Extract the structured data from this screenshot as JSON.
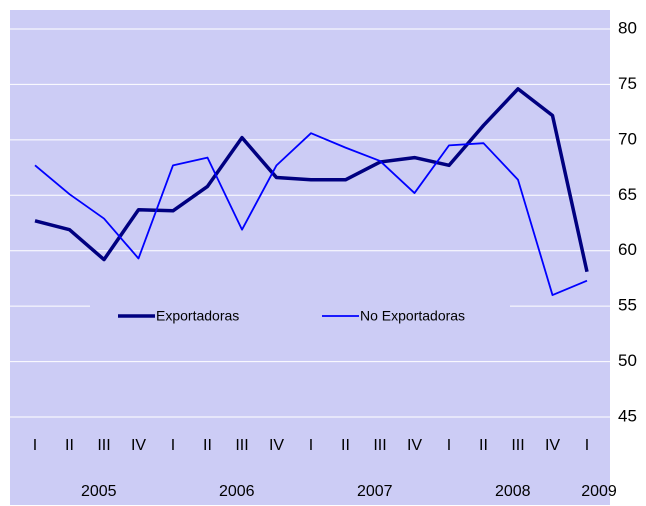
{
  "chart_data": {
    "type": "line",
    "categories": [
      "I",
      "II",
      "III",
      "IV",
      "I",
      "II",
      "III",
      "IV",
      "I",
      "II",
      "III",
      "IV",
      "I",
      "II",
      "III",
      "IV",
      "I"
    ],
    "x_groups": [
      "2005",
      "2006",
      "2007",
      "2008",
      "2009"
    ],
    "series": [
      {
        "name": "Exportadoras",
        "color": "#000080",
        "values": [
          62.7,
          61.9,
          59.2,
          63.7,
          63.6,
          65.8,
          70.2,
          66.6,
          66.4,
          66.4,
          68.0,
          68.4,
          67.7,
          71.3,
          74.6,
          72.2,
          58.1
        ]
      },
      {
        "name": "No Exportadoras",
        "color": "#0000ff",
        "values": [
          67.7,
          65.1,
          62.9,
          59.3,
          67.7,
          68.4,
          61.9,
          67.7,
          70.6,
          69.3,
          68.1,
          65.2,
          69.5,
          69.7,
          66.4,
          56.0,
          57.3
        ]
      }
    ],
    "ylim": [
      45,
      80
    ],
    "yticks": [
      45,
      50,
      55,
      60,
      65,
      70,
      75,
      80
    ],
    "grid": true,
    "legend": "center"
  }
}
